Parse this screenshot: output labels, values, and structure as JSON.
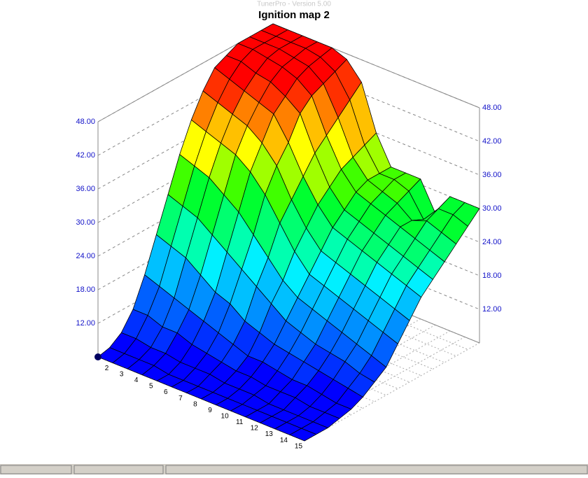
{
  "window": {
    "title": "TunerPro - Version 5.00"
  },
  "chart_data": {
    "type": "surface3d",
    "title": "Ignition map 2",
    "rows": [
      null,
      "2",
      "3",
      "4",
      "5",
      "6",
      "7",
      "8",
      "9",
      "10",
      "11",
      "12",
      "13",
      "14",
      "15"
    ],
    "z": [
      [
        6,
        6.5,
        8,
        11,
        16,
        22,
        28,
        34,
        39,
        43,
        46,
        47,
        48,
        48,
        48,
        48
      ],
      [
        6,
        6.5,
        8,
        11,
        15,
        21,
        27,
        33,
        38,
        42,
        45,
        47,
        48,
        48,
        48,
        48
      ],
      [
        6,
        6.5,
        7.5,
        10,
        14,
        20,
        26,
        32,
        37,
        41,
        44,
        46,
        47.5,
        48,
        48,
        48
      ],
      [
        6,
        6.5,
        7.5,
        10,
        13,
        18,
        24,
        30,
        36,
        40,
        43,
        45.5,
        47,
        47.5,
        48,
        48
      ],
      [
        6,
        6,
        7,
        9,
        12,
        16,
        22,
        28,
        34,
        38,
        42,
        44,
        46,
        47,
        47.5,
        48
      ],
      [
        6,
        6,
        7,
        8.5,
        11,
        15,
        20,
        25,
        31,
        35,
        38,
        42,
        44,
        45,
        46,
        47
      ],
      [
        6,
        6,
        7,
        8,
        10,
        13,
        18,
        22,
        27,
        30,
        33,
        36,
        38,
        40,
        42,
        44
      ],
      [
        6,
        6,
        6.5,
        7.5,
        9,
        12,
        16,
        19,
        23,
        26,
        29,
        31,
        33,
        34,
        35,
        36
      ],
      [
        6,
        6,
        6.5,
        7.5,
        9,
        11,
        14,
        17,
        20,
        23,
        26,
        28,
        30,
        31,
        31,
        31
      ],
      [
        6,
        6,
        6.5,
        7,
        8.5,
        10.5,
        13,
        16,
        19,
        22,
        25,
        27,
        29,
        30,
        31,
        31
      ],
      [
        6,
        6,
        6,
        7,
        8,
        10,
        12,
        15,
        18,
        21,
        24,
        26,
        28,
        29,
        30,
        31
      ],
      [
        6,
        6,
        6,
        7,
        8,
        9.5,
        11.5,
        14,
        17,
        20,
        23,
        25,
        27,
        27,
        26,
        26
      ],
      [
        6,
        6,
        6,
        6.5,
        7.5,
        9,
        11,
        13,
        16,
        19,
        22,
        24,
        26,
        28,
        29,
        30
      ],
      [
        6,
        6,
        6,
        6.5,
        7,
        8.5,
        10,
        12,
        15,
        18,
        21,
        23,
        25,
        27,
        29,
        30
      ],
      [
        6,
        6,
        6,
        6.5,
        7,
        8,
        9.5,
        11,
        14,
        17,
        20,
        22,
        24,
        26,
        28,
        30
      ]
    ],
    "zlim": [
      6,
      48
    ],
    "zticks": [
      {
        "value": 12,
        "label": "12.00"
      },
      {
        "value": 18,
        "label": "18.00"
      },
      {
        "value": 24,
        "label": "24.00"
      },
      {
        "value": 30,
        "label": "30.00"
      },
      {
        "value": 36,
        "label": "36.00"
      },
      {
        "value": 42,
        "label": "42.00"
      },
      {
        "value": 48,
        "label": "48.00"
      }
    ],
    "colors": [
      "#0000ff",
      "#0030ff",
      "#0060ff",
      "#0090ff",
      "#00c0ff",
      "#00f0ff",
      "#00ffb0",
      "#00ff70",
      "#00ff30",
      "#40ff00",
      "#a0ff00",
      "#ffff00",
      "#ffc000",
      "#ff8000",
      "#ff3000",
      "#ff0000"
    ],
    "grid": true
  }
}
